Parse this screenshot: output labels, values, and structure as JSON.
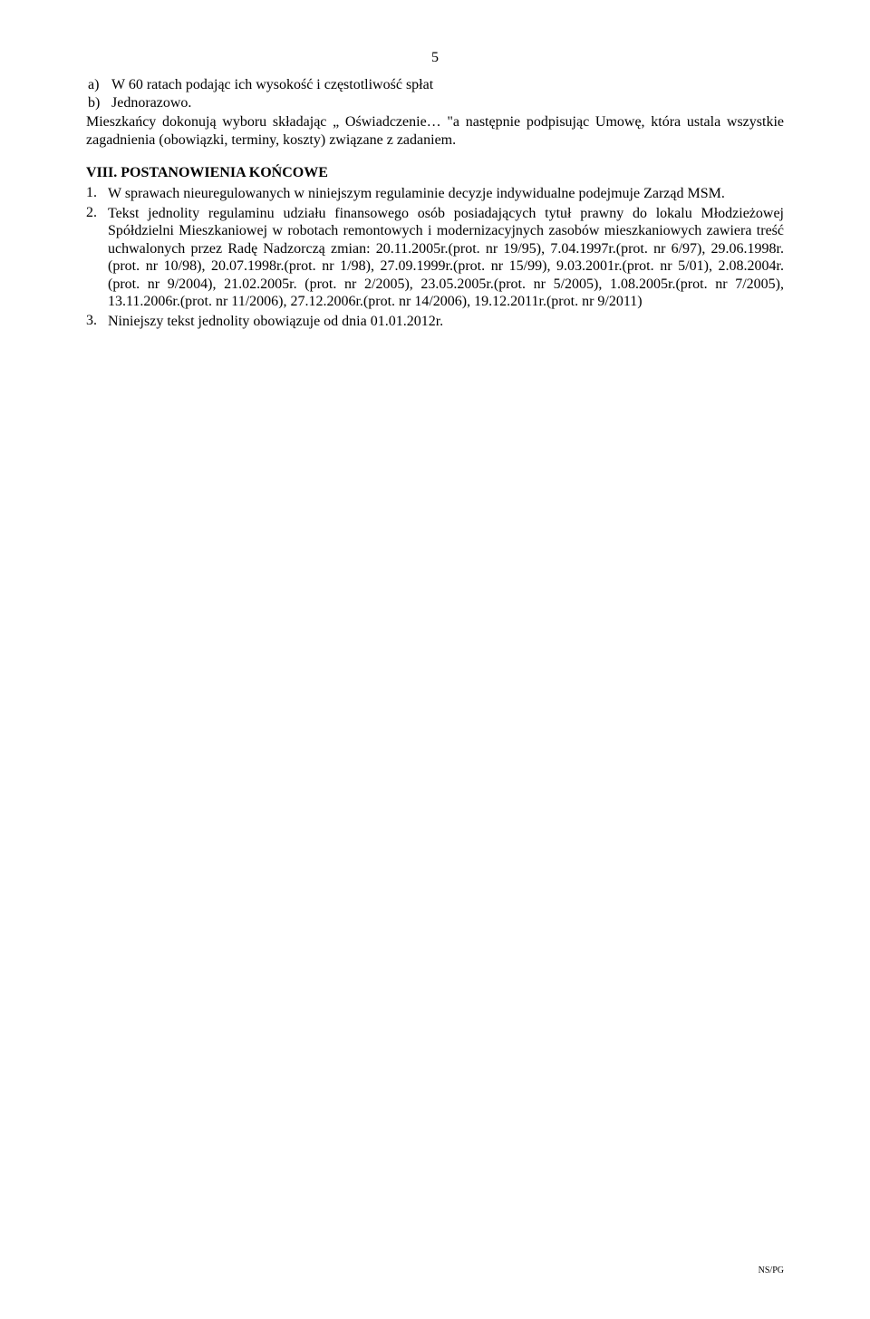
{
  "page": {
    "number": "5",
    "background_color": "#ffffff",
    "text_color": "#000000",
    "font_family": "Times New Roman",
    "body_fontsize": 16,
    "footer_fontsize": 10
  },
  "items_ab": {
    "a": {
      "marker": "a)",
      "text": "W 60 ratach podając ich wysokość i częstotliwość spłat"
    },
    "b": {
      "marker": "b)",
      "text": "Jednorazowo."
    }
  },
  "main_para": "Mieszkańcy dokonują wyboru składając „ Oświadczenie… \"a następnie podpisując Umowę, która ustala wszystkie zagadnienia (obowiązki, terminy, koszty) związane z zadaniem.",
  "section": {
    "heading": "VIII. POSTANOWIENIA KOŃCOWE"
  },
  "numbered": {
    "n1": {
      "marker": "1.",
      "text": "W sprawach nieuregulowanych w niniejszym regulaminie decyzje indywidualne podejmuje Zarząd MSM."
    },
    "n2": {
      "marker": "2.",
      "text": "Tekst jednolity regulaminu udziału finansowego osób posiadających tytuł prawny do lokalu Młodzieżowej Spółdzielni Mieszkaniowej w robotach remontowych i modernizacyjnych zasobów mieszkaniowych zawiera treść uchwalonych przez Radę Nadzorczą zmian: 20.11.2005r.(prot. nr 19/95), 7.04.1997r.(prot. nr 6/97), 29.06.1998r.(prot. nr 10/98), 20.07.1998r.(prot. nr 1/98), 27.09.1999r.(prot. nr 15/99), 9.03.2001r.(prot. nr 5/01), 2.08.2004r.(prot. nr 9/2004), 21.02.2005r. (prot. nr 2/2005), 23.05.2005r.(prot. nr 5/2005), 1.08.2005r.(prot. nr 7/2005), 13.11.2006r.(prot. nr 11/2006), 27.12.2006r.(prot. nr 14/2006), 19.12.2011r.(prot. nr 9/2011)"
    },
    "n3": {
      "marker": "3.",
      "text": "Niniejszy tekst jednolity obowiązuje od dnia 01.01.2012r."
    }
  },
  "footer": "NS/PG"
}
